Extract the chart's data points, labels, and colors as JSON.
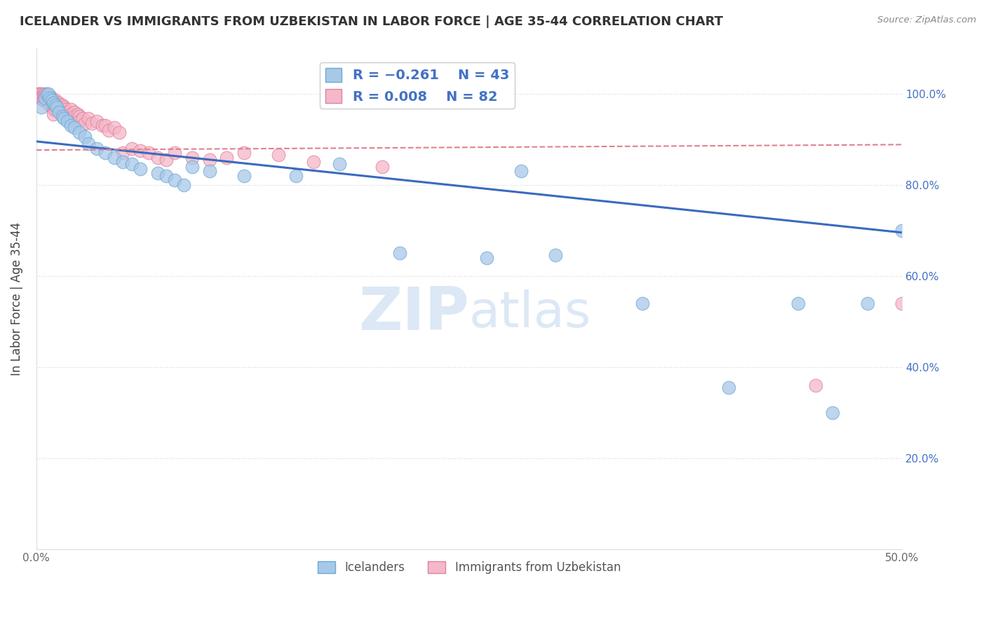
{
  "title": "ICELANDER VS IMMIGRANTS FROM UZBEKISTAN IN LABOR FORCE | AGE 35-44 CORRELATION CHART",
  "source": "Source: ZipAtlas.com",
  "ylabel": "In Labor Force | Age 35-44",
  "xlim": [
    0.0,
    0.5
  ],
  "ylim": [
    0.0,
    1.1
  ],
  "xtick_vals": [
    0.0,
    0.1,
    0.2,
    0.3,
    0.4,
    0.5
  ],
  "xtick_labels": [
    "0.0%",
    "",
    "",
    "",
    "",
    "50.0%"
  ],
  "ytick_vals": [
    0.0,
    0.2,
    0.4,
    0.6,
    0.8,
    1.0
  ],
  "ytick_labels_left": [
    "",
    "",
    "",
    "",
    "",
    ""
  ],
  "ytick_labels_right": [
    "",
    "20.0%",
    "40.0%",
    "60.0%",
    "80.0%",
    "100.0%"
  ],
  "blue_color": "#a8c8e8",
  "blue_edge": "#6aaad4",
  "pink_color": "#f4b8c8",
  "pink_edge": "#e080a0",
  "trend_blue": "#3a6abf",
  "trend_pink": "#e08090",
  "watermark_color": "#dce8f5",
  "ice_trend_y0": 0.895,
  "ice_trend_y1": 0.695,
  "uzb_trend_y0": 0.876,
  "uzb_trend_y1": 0.888,
  "icelanders_x": [
    0.003,
    0.005,
    0.006,
    0.007,
    0.008,
    0.009,
    0.01,
    0.011,
    0.012,
    0.013,
    0.015,
    0.016,
    0.018,
    0.02,
    0.022,
    0.025,
    0.028,
    0.03,
    0.035,
    0.04,
    0.045,
    0.05,
    0.055,
    0.06,
    0.07,
    0.075,
    0.08,
    0.085,
    0.09,
    0.1,
    0.12,
    0.15,
    0.175,
    0.21,
    0.26,
    0.28,
    0.3,
    0.35,
    0.4,
    0.44,
    0.46,
    0.48,
    0.5
  ],
  "icelanders_y": [
    0.97,
    0.99,
    1.0,
    1.0,
    0.99,
    0.985,
    0.98,
    0.975,
    0.97,
    0.96,
    0.95,
    0.945,
    0.94,
    0.93,
    0.925,
    0.915,
    0.905,
    0.89,
    0.88,
    0.87,
    0.86,
    0.85,
    0.845,
    0.835,
    0.825,
    0.82,
    0.81,
    0.8,
    0.84,
    0.83,
    0.82,
    0.82,
    0.845,
    0.65,
    0.64,
    0.83,
    0.645,
    0.54,
    0.355,
    0.54,
    0.3,
    0.54,
    0.7
  ],
  "uzbek_x": [
    0.001,
    0.001,
    0.002,
    0.002,
    0.002,
    0.003,
    0.003,
    0.003,
    0.004,
    0.004,
    0.004,
    0.005,
    0.005,
    0.005,
    0.005,
    0.006,
    0.006,
    0.006,
    0.007,
    0.007,
    0.007,
    0.007,
    0.008,
    0.008,
    0.008,
    0.009,
    0.009,
    0.009,
    0.01,
    0.01,
    0.01,
    0.01,
    0.011,
    0.011,
    0.011,
    0.012,
    0.012,
    0.013,
    0.013,
    0.014,
    0.014,
    0.015,
    0.015,
    0.016,
    0.016,
    0.017,
    0.017,
    0.018,
    0.018,
    0.02,
    0.02,
    0.022,
    0.022,
    0.024,
    0.025,
    0.025,
    0.027,
    0.028,
    0.03,
    0.032,
    0.035,
    0.038,
    0.04,
    0.042,
    0.045,
    0.048,
    0.05,
    0.055,
    0.06,
    0.065,
    0.07,
    0.075,
    0.08,
    0.09,
    0.1,
    0.11,
    0.12,
    0.14,
    0.16,
    0.2,
    0.45,
    0.5
  ],
  "uzbek_y": [
    1.0,
    1.0,
    1.0,
    1.0,
    0.99,
    1.0,
    0.995,
    0.99,
    1.0,
    0.995,
    0.985,
    1.0,
    0.995,
    0.99,
    0.985,
    0.995,
    0.99,
    0.985,
    0.995,
    0.99,
    0.985,
    0.98,
    0.995,
    0.985,
    0.975,
    0.99,
    0.98,
    0.97,
    0.985,
    0.975,
    0.965,
    0.955,
    0.985,
    0.975,
    0.965,
    0.98,
    0.97,
    0.98,
    0.97,
    0.975,
    0.965,
    0.975,
    0.965,
    0.97,
    0.96,
    0.965,
    0.955,
    0.96,
    0.95,
    0.965,
    0.955,
    0.96,
    0.95,
    0.955,
    0.95,
    0.94,
    0.945,
    0.935,
    0.945,
    0.935,
    0.94,
    0.93,
    0.93,
    0.92,
    0.925,
    0.915,
    0.87,
    0.88,
    0.875,
    0.87,
    0.86,
    0.855,
    0.87,
    0.86,
    0.855,
    0.86,
    0.87,
    0.865,
    0.85,
    0.84,
    0.36,
    0.54
  ]
}
